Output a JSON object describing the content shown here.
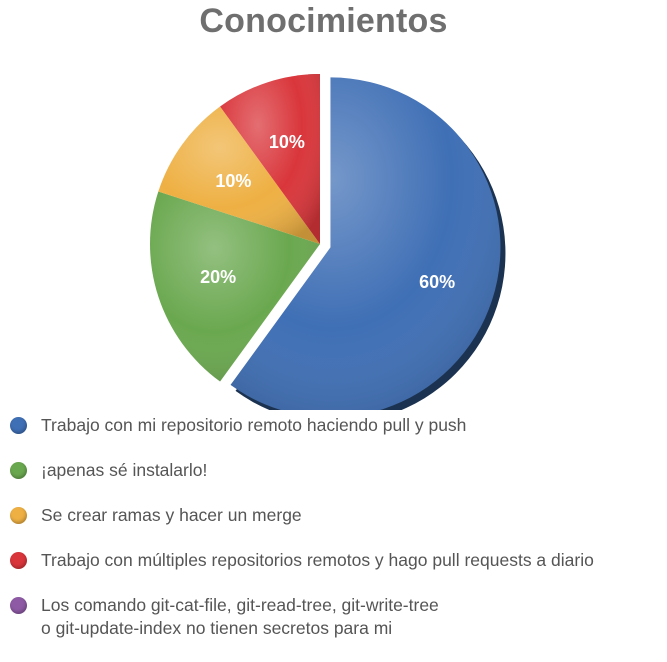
{
  "chart_data": {
    "type": "pie",
    "title": "Conocimientos",
    "categories": [
      "Trabajo con mi repositorio remoto haciendo pull y push",
      "¡apenas sé instalarlo!",
      "Se crear ramas y hacer un merge",
      "Trabajo con múltiples repositorios remotos y hago pull requests a diario",
      "Los comando git-cat-file, git-read-tree, git-write-tree\n o git-update-index no tienen secretos para mi"
    ],
    "values": [
      60,
      20,
      10,
      10,
      0
    ],
    "data_labels": [
      "60%",
      "20%",
      "10%",
      "10%",
      ""
    ],
    "colors": [
      "#3f6fb5",
      "#6aa84f",
      "#eeb043",
      "#d9363b",
      "#8e5aa5"
    ],
    "exploded": [
      true,
      false,
      false,
      false,
      false
    ],
    "legend_position": "bottom"
  }
}
